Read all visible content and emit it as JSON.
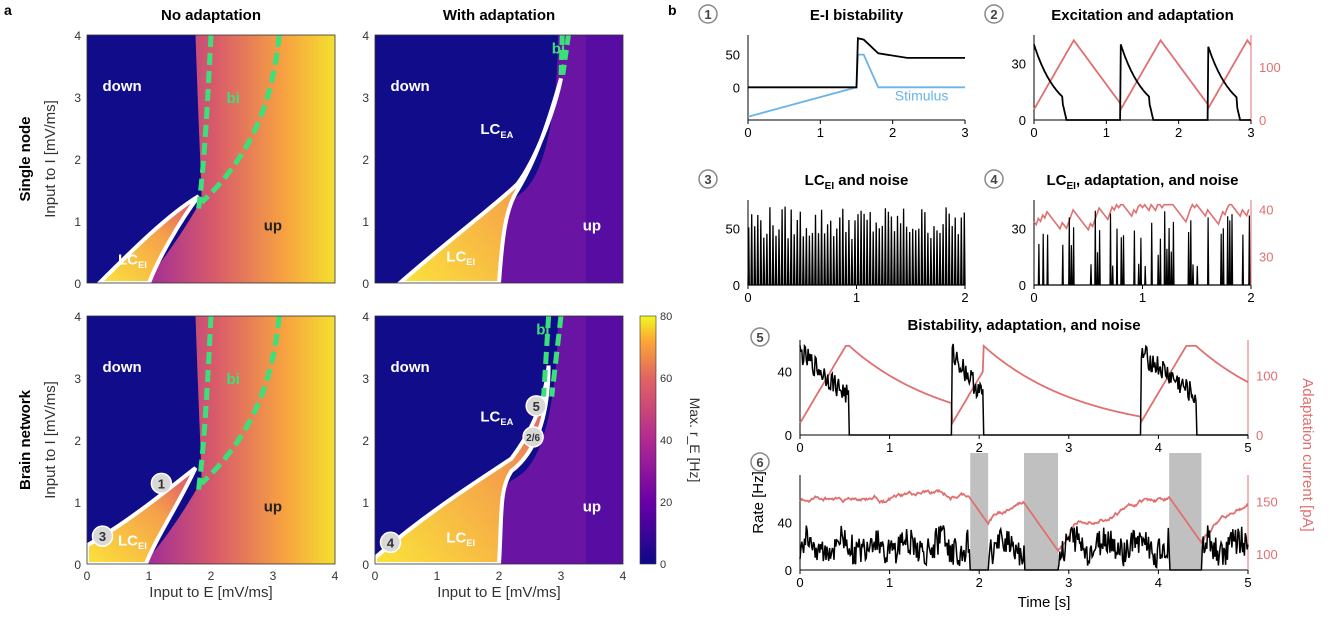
{
  "panel_a_label": "a",
  "panel_b_label": "b",
  "col_titles": [
    "No adaptation",
    "With adaptation"
  ],
  "row_titles": [
    "Single node",
    "Brain network"
  ],
  "ylabel": "Input to I [mV/ms]",
  "xlabel": "Input to E [mV/ms]",
  "heatmap_ticks": [
    "0",
    "1",
    "2",
    "3",
    "4"
  ],
  "colorbar": {
    "label": "Max. r_E [Hz]",
    "ticks": [
      "0",
      "20",
      "40",
      "60",
      "80"
    ]
  },
  "region_labels": {
    "down": "down",
    "up": "up",
    "bi": "bi",
    "lc_ei": "LC",
    "lc_ei_sub": "EI",
    "lc_ea": "LC",
    "lc_ea_sub": "EA"
  },
  "markers": [
    "1",
    "2",
    "3",
    "4",
    "5",
    "6",
    "2/6"
  ],
  "colors": {
    "rate": "#000000",
    "adaptation": "#e07070",
    "stimulus": "#6ab4e8",
    "bistable_boundary": "#3ce07a",
    "shading": "#c0c0c0"
  },
  "chart_data": [
    {
      "type": "line",
      "title": "E-I bistability",
      "x": [
        0,
        1.5,
        1.52,
        1.6,
        1.8,
        2.2,
        3
      ],
      "series": [
        {
          "values": [
            0,
            0,
            75,
            73,
            52,
            45,
            45
          ]
        },
        {
          "name": "Stimulus",
          "values": [
            -45,
            0,
            50,
            50,
            0,
            0,
            0
          ]
        }
      ],
      "xticks": [
        "0",
        "1",
        "2",
        "3"
      ],
      "yticks": [
        "0",
        "50"
      ],
      "ylim": [
        -50,
        80
      ],
      "xlim": [
        0,
        3
      ]
    },
    {
      "type": "line",
      "title": "Excitation and adaptation",
      "xticks": [
        "0",
        "1",
        "2",
        "3"
      ],
      "yticks": [
        "0",
        "30"
      ],
      "yticks_right": [
        "0",
        "100"
      ],
      "xlim": [
        0,
        3
      ],
      "ylim": [
        0,
        45
      ],
      "ylim_right": [
        0,
        160
      ]
    },
    {
      "type": "line",
      "title": "LC",
      "title_sub": "EI",
      "title_suffix": " and noise",
      "xticks": [
        "0",
        "1",
        "2"
      ],
      "yticks": [
        "0",
        "50"
      ],
      "xlim": [
        0,
        2
      ],
      "ylim": [
        0,
        75
      ]
    },
    {
      "type": "line",
      "title": "LC",
      "title_sub": "EI",
      "title_suffix": ", adaptation, and noise",
      "xticks": [
        "0",
        "1",
        "2"
      ],
      "yticks": [
        "0",
        "30"
      ],
      "yticks_right": [
        "30",
        "40"
      ],
      "xlim": [
        0,
        2
      ],
      "ylim": [
        0,
        45
      ],
      "ylim_right": [
        24,
        42
      ]
    },
    {
      "type": "line",
      "title": "Bistability, adaptation, and noise",
      "xticks": [
        "0",
        "1",
        "2",
        "3",
        "4",
        "5"
      ],
      "yticks": [
        "0",
        "40"
      ],
      "yticks_right": [
        "0",
        "100"
      ],
      "xlim": [
        0,
        5
      ],
      "ylim": [
        0,
        60
      ],
      "ylim_right": [
        0,
        160
      ]
    },
    {
      "type": "line",
      "xticks": [
        "0",
        "1",
        "2",
        "3",
        "4",
        "5"
      ],
      "yticks": [
        "0",
        "40"
      ],
      "yticks_right": [
        "100",
        "150"
      ],
      "xlim": [
        0,
        5
      ],
      "ylim": [
        0,
        80
      ],
      "ylim_right": [
        85,
        175
      ],
      "shaded_intervals": [
        [
          1.9,
          2.1
        ],
        [
          2.5,
          2.88
        ],
        [
          4.12,
          4.48
        ]
      ],
      "xlabel": "Time [s]",
      "ylabel": "Rate [Hz]",
      "ylabel_right": "Adaptation current [pA]"
    }
  ],
  "bistability_stimulus_label": "Stimulus"
}
